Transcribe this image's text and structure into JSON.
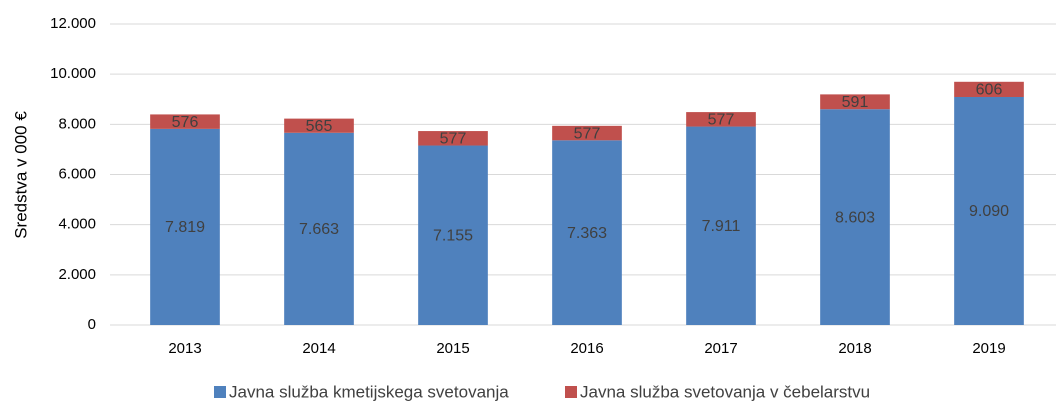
{
  "chart_data": {
    "type": "stacked_bar",
    "ylabel": "Sredstva v 000 €",
    "categories": [
      "2013",
      "2014",
      "2015",
      "2016",
      "2017",
      "2018",
      "2019"
    ],
    "series": [
      {
        "name": "Javna služba kmetijskega svetovanja",
        "color": "#4f81bd",
        "values": [
          7819,
          7663,
          7155,
          7363,
          7911,
          8603,
          9090
        ],
        "value_labels": [
          "7.819",
          "7.663",
          "7.155",
          "7.363",
          "7.911",
          "8.603",
          "9.090"
        ]
      },
      {
        "name": "Javna služba svetovanja v čebelarstvu",
        "color": "#c0504d",
        "values": [
          576,
          565,
          577,
          577,
          577,
          591,
          606
        ]
      }
    ],
    "ylim": [
      0,
      12000
    ],
    "yticks": [
      0,
      {
        "value": 2000,
        "label": "2.000"
      },
      {
        "value": 4000,
        "label": "4.000"
      },
      {
        "value": 6000,
        "label": "6.000"
      },
      {
        "value": 8000,
        "label": "8.000"
      },
      {
        "value": 10000,
        "label": "10.000"
      },
      {
        "value": 12000,
        "label": "12.000"
      }
    ],
    "grid": true,
    "legend": "bottom"
  }
}
